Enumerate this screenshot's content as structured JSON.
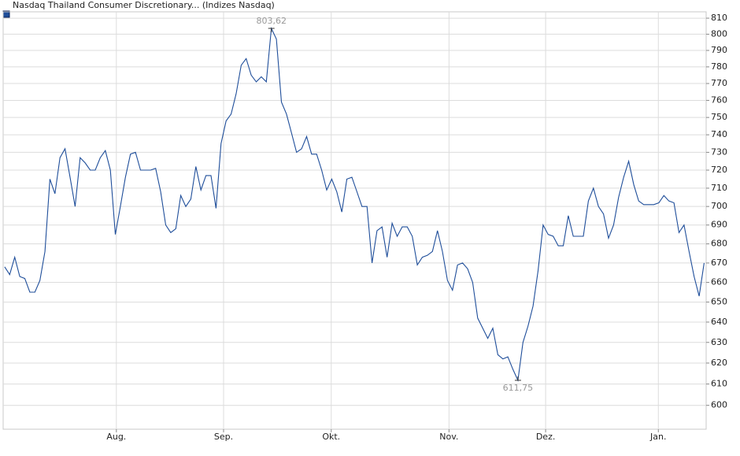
{
  "chart_data": {
    "type": "line",
    "series": [
      {
        "name": "Nasdaq Thailand Consumer Discretionary... (Indizes Nasdaq)",
        "color": "#1f4e9a",
        "values": [
          668,
          664,
          673,
          663,
          662,
          655,
          655,
          661,
          676,
          715,
          707,
          727,
          732,
          716,
          700,
          727,
          724,
          720,
          720,
          727,
          731,
          720,
          685,
          700,
          716,
          729,
          730,
          720,
          720,
          720,
          721,
          708,
          690,
          686,
          688,
          706,
          700,
          704,
          722,
          709,
          717,
          717,
          699,
          735,
          748,
          752,
          764,
          781,
          785,
          775,
          771,
          774,
          771,
          803.62,
          797,
          759,
          752,
          741,
          730,
          732,
          739,
          729,
          729,
          720,
          709,
          715,
          708,
          697,
          715,
          716,
          708,
          700,
          700,
          670,
          687,
          689,
          673,
          691,
          684,
          689,
          689,
          684,
          669,
          673,
          674,
          676,
          687,
          676,
          661,
          656,
          669,
          670,
          667,
          660,
          642,
          637,
          632,
          637,
          624,
          622,
          623,
          617,
          611.75,
          630,
          638,
          648,
          666,
          690,
          685,
          684,
          679,
          679,
          695,
          684,
          684,
          684,
          703,
          710,
          700,
          696,
          683,
          690,
          705,
          716,
          725,
          712,
          703,
          701,
          701,
          701,
          702,
          706,
          703,
          702,
          686,
          690,
          676,
          663,
          653,
          670
        ]
      }
    ],
    "annotations": [
      {
        "x": 53,
        "value": 803.62,
        "label": "803,62"
      },
      {
        "x": 102,
        "value": 611.75,
        "label": "611,75"
      }
    ],
    "xlim": [
      -0.3,
      139.4
    ],
    "xticks": [
      {
        "value": 22.2,
        "label": "Aug."
      },
      {
        "value": 43.5,
        "label": "Sep."
      },
      {
        "value": 64.9,
        "label": "Okt."
      },
      {
        "value": 88.3,
        "label": "Nov."
      },
      {
        "value": 107.5,
        "label": "Dez."
      },
      {
        "value": 129.9,
        "label": "Jan."
      }
    ],
    "ylim": [
      589,
      814
    ],
    "log_y": true,
    "yticks": [
      600,
      610,
      620,
      630,
      640,
      650,
      660,
      670,
      680,
      690,
      700,
      710,
      720,
      730,
      740,
      750,
      760,
      770,
      780,
      790,
      800,
      810
    ],
    "grid": true
  }
}
